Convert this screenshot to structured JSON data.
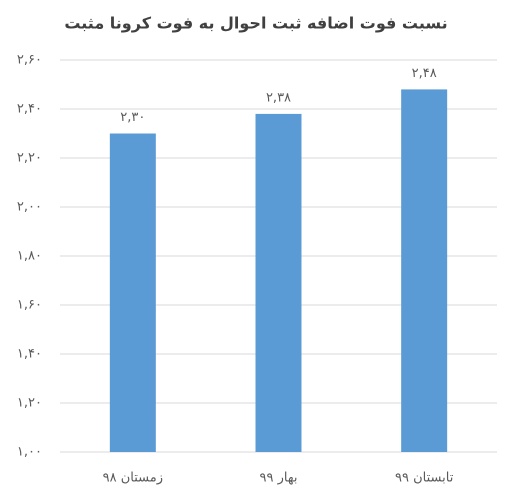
{
  "chart_data": {
    "type": "bar",
    "title": "نسبت فوت اضافه ثبت احوال به فوت کرونا مثبت",
    "categories": [
      "زمستان ۹۸",
      "بهار ۹۹",
      "تابستان ۹۹"
    ],
    "values": [
      2.3,
      2.38,
      2.48
    ],
    "value_labels": [
      "۲,۳۰",
      "۲,۳۸",
      "۲,۴۸"
    ],
    "color": "#5b9bd5",
    "ylim": [
      1.0,
      2.6
    ],
    "yticks": [
      {
        "value": 1.0,
        "label": "۱,۰۰"
      },
      {
        "value": 1.2,
        "label": "۱,۲۰"
      },
      {
        "value": 1.4,
        "label": "۱,۴۰"
      },
      {
        "value": 1.6,
        "label": "۱,۶۰"
      },
      {
        "value": 1.8,
        "label": "۱,۸۰"
      },
      {
        "value": 2.0,
        "label": "۲,۰۰"
      },
      {
        "value": 2.2,
        "label": "۲,۲۰"
      },
      {
        "value": 2.4,
        "label": "۲,۴۰"
      },
      {
        "value": 2.6,
        "label": "۲,۶۰"
      }
    ],
    "grid": true
  }
}
